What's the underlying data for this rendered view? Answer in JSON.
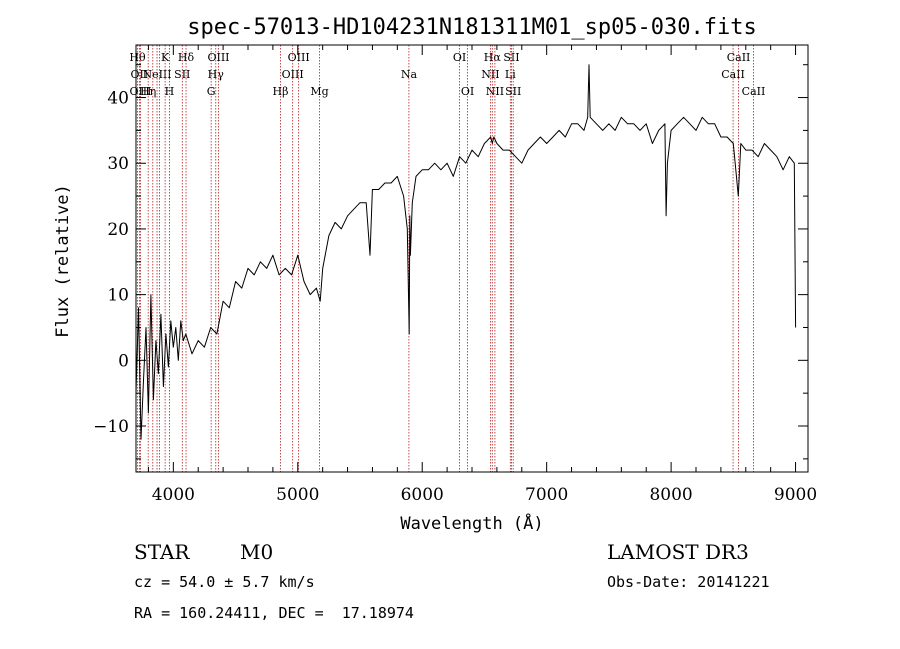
{
  "chart_data": {
    "type": "line",
    "title": "spec-57013-HD104231N181311M01_sp05-030.fits",
    "xlabel": "Wavelength (Å)",
    "ylabel": "Flux (relative)",
    "xlim": [
      3700,
      9100
    ],
    "ylim": [
      -17,
      48
    ],
    "x_ticks": [
      4000,
      5000,
      6000,
      7000,
      8000,
      9000
    ],
    "y_ticks": [
      -10,
      0,
      10,
      20,
      30,
      40
    ],
    "x_tick_labels": [
      "4000",
      "5000",
      "6000",
      "7000",
      "8000",
      "9000"
    ],
    "y_tick_labels": [
      "−10",
      "0",
      "10",
      "20",
      "30",
      "40"
    ],
    "grid": false,
    "series": [
      {
        "x": [
          3700,
          3720,
          3740,
          3760,
          3780,
          3800,
          3820,
          3840,
          3860,
          3880,
          3900,
          3920,
          3940,
          3960,
          3980,
          4000,
          4020,
          4040,
          4060,
          4080,
          4100,
          4150,
          4200,
          4250,
          4300,
          4350,
          4400,
          4450,
          4500,
          4550,
          4600,
          4650,
          4700,
          4750,
          4800,
          4850,
          4900,
          4950,
          5000,
          5050,
          5100,
          5150,
          5180,
          5200,
          5250,
          5300,
          5350,
          5400,
          5450,
          5500,
          5550,
          5580,
          5600,
          5650,
          5700,
          5750,
          5800,
          5850,
          5880,
          5895,
          5900,
          5905,
          5920,
          5950,
          6000,
          6050,
          6100,
          6150,
          6200,
          6250,
          6300,
          6350,
          6400,
          6450,
          6500,
          6550,
          6563,
          6575,
          6600,
          6650,
          6700,
          6750,
          6800,
          6850,
          6900,
          6950,
          7000,
          7050,
          7100,
          7150,
          7200,
          7250,
          7300,
          7330,
          7340,
          7350,
          7400,
          7450,
          7500,
          7550,
          7600,
          7650,
          7700,
          7750,
          7800,
          7850,
          7900,
          7950,
          7960,
          7970,
          8000,
          8050,
          8100,
          8150,
          8200,
          8250,
          8300,
          8350,
          8400,
          8450,
          8500,
          8540,
          8560,
          8600,
          8650,
          8700,
          8750,
          8800,
          8850,
          8900,
          8950,
          8990,
          9000
        ],
        "y": [
          -5,
          8,
          -12,
          -3,
          5,
          -8,
          10,
          -6,
          3,
          -2,
          7,
          -4,
          4,
          -1,
          6,
          2,
          5,
          0,
          6,
          3,
          4,
          1,
          3,
          2,
          5,
          4,
          9,
          8,
          12,
          11,
          14,
          13,
          15,
          14,
          16,
          13,
          14,
          13,
          16,
          12,
          10,
          11,
          9,
          14,
          19,
          21,
          20,
          22,
          23,
          24,
          24,
          16,
          26,
          26,
          27,
          27,
          28,
          25,
          20,
          4,
          22,
          16,
          24,
          28,
          29,
          29,
          30,
          29,
          30,
          28,
          31,
          30,
          32,
          31,
          33,
          34,
          33,
          34,
          33,
          32,
          32,
          31,
          30,
          32,
          33,
          34,
          33,
          34,
          35,
          34,
          36,
          36,
          35,
          37,
          45,
          37,
          36,
          35,
          36,
          35,
          37,
          36,
          36,
          35,
          36,
          33,
          35,
          36,
          22,
          30,
          35,
          36,
          37,
          36,
          35,
          37,
          36,
          36,
          34,
          34,
          33,
          25,
          33,
          32,
          32,
          31,
          33,
          32,
          31,
          29,
          31,
          30,
          5
        ]
      }
    ],
    "spectral_lines": [
      {
        "x": 3712,
        "label": "Hθ",
        "row": 1
      },
      {
        "x": 3727,
        "label": "OII",
        "row": 2
      },
      {
        "x": 3736,
        "label": "OIII",
        "row": 3
      },
      {
        "x": 3798,
        "label": "Hη",
        "row": 3
      },
      {
        "x": 3835,
        "label": "",
        "row": 0
      },
      {
        "x": 3869,
        "label": "NeIII",
        "row": 2
      },
      {
        "x": 3889,
        "label": "",
        "row": 0
      },
      {
        "x": 3934,
        "label": "K",
        "row": 1
      },
      {
        "x": 3969,
        "label": "H",
        "row": 3
      },
      {
        "x": 4072,
        "label": "SII",
        "row": 2
      },
      {
        "x": 4102,
        "label": "Hδ",
        "row": 1
      },
      {
        "x": 4304,
        "label": "G",
        "row": 3
      },
      {
        "x": 4341,
        "label": "Hγ",
        "row": 2
      },
      {
        "x": 4363,
        "label": "OIII",
        "row": 1
      },
      {
        "x": 4861,
        "label": "Hβ",
        "row": 3
      },
      {
        "x": 4959,
        "label": "OIII",
        "row": 2
      },
      {
        "x": 5007,
        "label": "OIII",
        "row": 1
      },
      {
        "x": 5175,
        "label": "Mg",
        "row": 3
      },
      {
        "x": 5893,
        "label": "Na",
        "row": 2
      },
      {
        "x": 6300,
        "label": "OI",
        "row": 1
      },
      {
        "x": 6364,
        "label": "OI",
        "row": 3
      },
      {
        "x": 6548,
        "label": "NII",
        "row": 2
      },
      {
        "x": 6563,
        "label": "Hα",
        "row": 1
      },
      {
        "x": 6584,
        "label": "NII",
        "row": 3
      },
      {
        "x": 6708,
        "label": "Li",
        "row": 2
      },
      {
        "x": 6717,
        "label": "SII",
        "row": 1
      },
      {
        "x": 6731,
        "label": "SII",
        "row": 3
      },
      {
        "x": 8498,
        "label": "CaII",
        "row": 2
      },
      {
        "x": 8542,
        "label": "CaII",
        "row": 1
      },
      {
        "x": 8662,
        "label": "CaII",
        "row": 3
      }
    ]
  },
  "info": {
    "object_class": "STAR",
    "subclass": "M0",
    "survey": "LAMOST DR3",
    "redshift": "cz = 54.0 ± 5.7 km/s",
    "obs_date": "Obs-Date: 20141221",
    "coords": "RA = 160.24411, DEC =  17.18974"
  },
  "colors": {
    "axis": "#000000",
    "spectrum": "#000000",
    "line_marker": "#b22222"
  }
}
